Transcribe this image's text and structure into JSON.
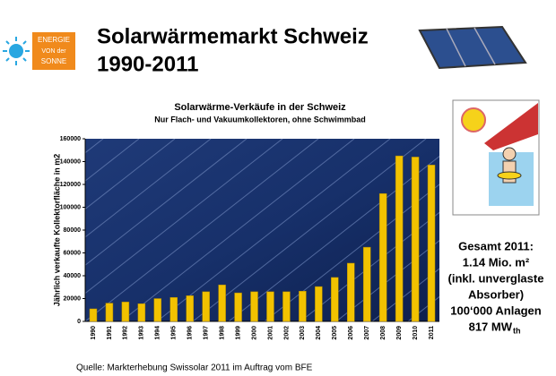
{
  "slide": {
    "logo": [
      "ENERGIE",
      "VON der",
      "SONNE"
    ],
    "title_lines": [
      "Solarwärmemarkt Schweiz",
      "1990-2011"
    ],
    "side_text": [
      "Gesamt 2011:",
      "1.14 Mio. m²",
      "(inkl. unverglaste",
      "Absorber)",
      "100‘000 Anlagen"
    ],
    "power": {
      "value": "817 MW",
      "subscript": "th"
    },
    "footer": "Quelle: Markterhebung  Swissolar  2011 im Auftrag  vom BFE"
  },
  "chart_data": {
    "type": "bar",
    "title": "Solarwärme-Verkäufe in der Schweiz",
    "subtitle": "Nur Flach- und Vakuumkollektoren, ohne Schwimmbad",
    "y_label": "Jährlich verkaufte Kollektorfläche in m2",
    "categories": [
      "1990",
      "1991",
      "1992",
      "1993",
      "1994",
      "1995",
      "1996",
      "1997",
      "1998",
      "1999",
      "2000",
      "2001",
      "2002",
      "2003",
      "2004",
      "2005",
      "2006",
      "2007",
      "2008",
      "2009",
      "2010",
      "2011"
    ],
    "values": [
      11000,
      16000,
      17000,
      15500,
      20000,
      21000,
      22500,
      26000,
      32000,
      25000,
      26000,
      26000,
      26000,
      26500,
      30500,
      38500,
      51000,
      65000,
      112000,
      145000,
      144000,
      137000
    ],
    "color": "#f2c200",
    "ylim": [
      0,
      160000
    ],
    "yticks": [
      0,
      20000,
      40000,
      60000,
      80000,
      100000,
      120000,
      140000,
      160000
    ],
    "grid": false
  }
}
